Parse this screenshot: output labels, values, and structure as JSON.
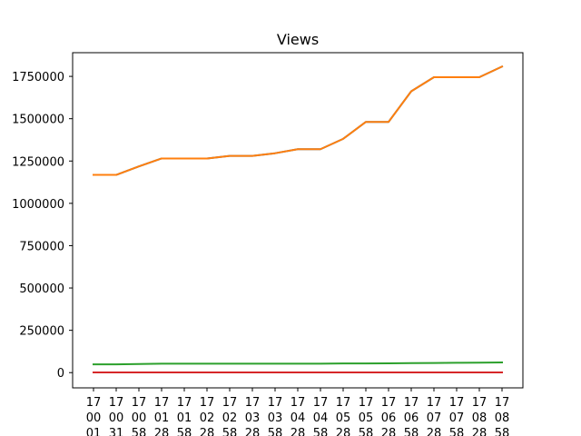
{
  "chart_data": {
    "type": "line",
    "title": "Views",
    "xlabel": "",
    "ylabel": "",
    "ylim": [
      -90000,
      1890000
    ],
    "grid": false,
    "legend": "none",
    "categories": [
      [
        "17",
        "00",
        "01"
      ],
      [
        "17",
        "00",
        "31"
      ],
      [
        "17",
        "00",
        "58"
      ],
      [
        "17",
        "01",
        "28"
      ],
      [
        "17",
        "01",
        "58"
      ],
      [
        "17",
        "02",
        "28"
      ],
      [
        "17",
        "02",
        "58"
      ],
      [
        "17",
        "03",
        "28"
      ],
      [
        "17",
        "03",
        "58"
      ],
      [
        "17",
        "04",
        "28"
      ],
      [
        "17",
        "04",
        "58"
      ],
      [
        "17",
        "05",
        "28"
      ],
      [
        "17",
        "05",
        "58"
      ],
      [
        "17",
        "06",
        "28"
      ],
      [
        "17",
        "06",
        "58"
      ],
      [
        "17",
        "07",
        "28"
      ],
      [
        "17",
        "07",
        "58"
      ],
      [
        "17",
        "08",
        "28"
      ],
      [
        "17",
        "08",
        "58"
      ]
    ],
    "yticks": [
      {
        "value": 0,
        "label": "0"
      },
      {
        "value": 250000,
        "label": "250000"
      },
      {
        "value": 500000,
        "label": "500000"
      },
      {
        "value": 750000,
        "label": "750000"
      },
      {
        "value": 1000000,
        "label": "1000000"
      },
      {
        "value": 1250000,
        "label": "1250000"
      },
      {
        "value": 1500000,
        "label": "1500000"
      },
      {
        "value": 1750000,
        "label": "1750000"
      }
    ],
    "series": [
      {
        "color": "#1f77b4",
        "values": [
          1168000,
          1168000,
          1218000,
          1265000,
          1265000,
          1265000,
          1280000,
          1280000,
          1296000,
          1320000,
          1320000,
          1381000,
          1481000,
          1481000,
          1662000,
          1745000,
          1745000,
          1745000,
          1808000
        ]
      },
      {
        "color": "#ff7f0e",
        "values": [
          1168000,
          1168000,
          1218000,
          1265000,
          1265000,
          1265000,
          1280000,
          1280000,
          1296000,
          1320000,
          1320000,
          1381000,
          1481000,
          1481000,
          1662000,
          1745000,
          1745000,
          1745000,
          1808000
        ]
      },
      {
        "color": "#2ca02c",
        "values": [
          49000,
          49000,
          51000,
          53000,
          53000,
          53000,
          53000,
          53000,
          53000,
          53000,
          53000,
          54000,
          54000,
          55000,
          56000,
          57000,
          58000,
          59000,
          60000
        ]
      },
      {
        "color": "#d62728",
        "values": [
          1000,
          1000,
          1000,
          1000,
          1000,
          1000,
          1000,
          1000,
          1000,
          1000,
          1000,
          1000,
          1000,
          1000,
          1000,
          1000,
          1000,
          1500,
          1500
        ]
      }
    ]
  }
}
